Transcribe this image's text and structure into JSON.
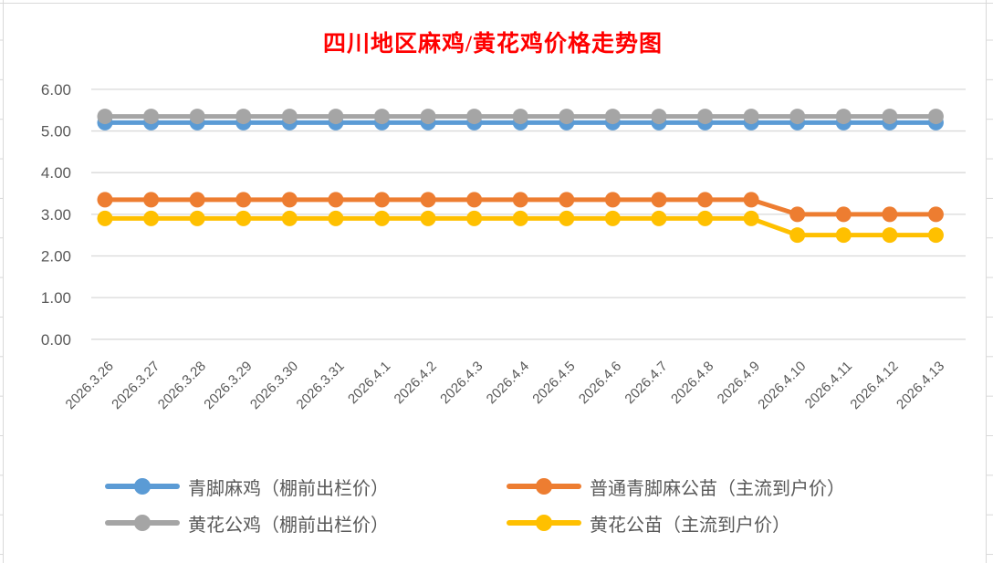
{
  "chart_data": {
    "type": "line",
    "title": "四川地区麻鸡/黄花鸡价格走势图",
    "title_color": "#FF0000",
    "categories": [
      "2026.3.26",
      "2026.3.27",
      "2026.3.28",
      "2026.3.29",
      "2026.3.30",
      "2026.3.31",
      "2026.4.1",
      "2026.4.2",
      "2026.4.3",
      "2026.4.4",
      "2026.4.5",
      "2026.4.6",
      "2026.4.7",
      "2026.4.8",
      "2026.4.9",
      "2026.4.10",
      "2026.4.11",
      "2026.4.12",
      "2026.4.13"
    ],
    "series": [
      {
        "name": "青脚麻鸡（棚前出栏价）",
        "color": "#5B9BD5",
        "values": [
          5.2,
          5.2,
          5.2,
          5.2,
          5.2,
          5.2,
          5.2,
          5.2,
          5.2,
          5.2,
          5.2,
          5.2,
          5.2,
          5.2,
          5.2,
          5.2,
          5.2,
          5.2,
          5.2
        ]
      },
      {
        "name": "普通青脚麻公苗（主流到户价）",
        "color": "#ED7D31",
        "values": [
          3.35,
          3.35,
          3.35,
          3.35,
          3.35,
          3.35,
          3.35,
          3.35,
          3.35,
          3.35,
          3.35,
          3.35,
          3.35,
          3.35,
          3.35,
          3.0,
          3.0,
          3.0,
          3.0
        ]
      },
      {
        "name": "黄花公鸡（棚前出栏价）",
        "color": "#A5A5A5",
        "values": [
          5.35,
          5.35,
          5.35,
          5.35,
          5.35,
          5.35,
          5.35,
          5.35,
          5.35,
          5.35,
          5.35,
          5.35,
          5.35,
          5.35,
          5.35,
          5.35,
          5.35,
          5.35,
          5.35
        ]
      },
      {
        "name": "黄花公苗（主流到户价）",
        "color": "#FFC000",
        "values": [
          2.9,
          2.9,
          2.9,
          2.9,
          2.9,
          2.9,
          2.9,
          2.9,
          2.9,
          2.9,
          2.9,
          2.9,
          2.9,
          2.9,
          2.9,
          2.5,
          2.5,
          2.5,
          2.5
        ]
      }
    ],
    "ylim": [
      0,
      6
    ],
    "ytick_step": 1,
    "ytick_labels": [
      "0.00",
      "1.00",
      "2.00",
      "3.00",
      "4.00",
      "5.00",
      "6.00"
    ],
    "grid": "horizontal",
    "legend_position": "bottom",
    "axis_label_color": "#595959",
    "gridline_color": "#D9D9D9"
  }
}
